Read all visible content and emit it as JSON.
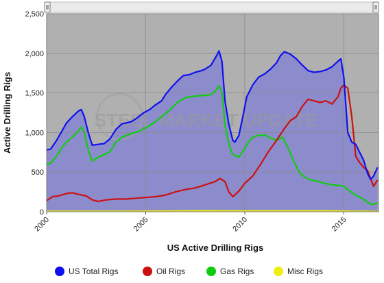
{
  "chart_data": {
    "type": "area",
    "title": "",
    "xlabel": "US Active Drilling Rigs",
    "ylabel": "Active Drilling Rigs",
    "xlim": [
      2000,
      2016.75
    ],
    "ylim": [
      0,
      2500
    ],
    "x_ticks": [
      "2000",
      "2005",
      "2010",
      "2015"
    ],
    "y_ticks": [
      "0",
      "500",
      "1,000",
      "1,500",
      "2,000",
      "2,500"
    ],
    "grid": true,
    "legend_position": "bottom",
    "watermark": "STEEL MARKET UPDATE",
    "plot_background": "#b0b0b0",
    "area_fill": "#8c8ccc",
    "series": [
      {
        "name": "US Total Rigs",
        "color": "#1010ee",
        "x": [
          2000.0,
          2000.2,
          2000.5,
          2000.8,
          2001.0,
          2001.3,
          2001.6,
          2001.75,
          2001.9,
          2002.1,
          2002.3,
          2002.6,
          2002.9,
          2003.2,
          2003.5,
          2003.8,
          2004.0,
          2004.3,
          2004.6,
          2004.9,
          2005.2,
          2005.5,
          2005.8,
          2006.0,
          2006.3,
          2006.6,
          2006.9,
          2007.2,
          2007.5,
          2007.8,
          2008.0,
          2008.3,
          2008.6,
          2008.7,
          2008.85,
          2009.0,
          2009.2,
          2009.4,
          2009.5,
          2009.7,
          2009.9,
          2010.1,
          2010.4,
          2010.7,
          2011.0,
          2011.3,
          2011.6,
          2011.8,
          2012.0,
          2012.3,
          2012.6,
          2012.9,
          2013.2,
          2013.5,
          2013.8,
          2014.1,
          2014.4,
          2014.7,
          2014.85,
          2015.0,
          2015.2,
          2015.4,
          2015.6,
          2015.8,
          2016.0,
          2016.2,
          2016.35,
          2016.5,
          2016.7
        ],
        "values": [
          780,
          790,
          900,
          1030,
          1120,
          1200,
          1270,
          1290,
          1200,
          1000,
          840,
          850,
          860,
          920,
          1040,
          1110,
          1120,
          1140,
          1190,
          1250,
          1290,
          1350,
          1400,
          1480,
          1570,
          1650,
          1720,
          1730,
          1760,
          1780,
          1800,
          1850,
          1980,
          2030,
          1900,
          1400,
          1100,
          900,
          880,
          960,
          1200,
          1450,
          1600,
          1700,
          1740,
          1800,
          1880,
          1970,
          2020,
          1990,
          1930,
          1850,
          1780,
          1760,
          1770,
          1790,
          1830,
          1900,
          1930,
          1700,
          1000,
          880,
          850,
          750,
          650,
          480,
          410,
          450,
          560
        ]
      },
      {
        "name": "Oil Rigs",
        "color": "#cc1010",
        "x": [
          2000.0,
          2000.3,
          2000.6,
          2001.0,
          2001.3,
          2001.6,
          2002.0,
          2002.3,
          2002.6,
          2003.0,
          2003.5,
          2004.0,
          2004.5,
          2005.0,
          2005.5,
          2006.0,
          2006.5,
          2007.0,
          2007.5,
          2008.0,
          2008.5,
          2008.75,
          2009.0,
          2009.2,
          2009.4,
          2009.7,
          2010.0,
          2010.4,
          2010.8,
          2011.2,
          2011.6,
          2012.0,
          2012.3,
          2012.6,
          2012.9,
          2013.2,
          2013.5,
          2013.8,
          2014.1,
          2014.4,
          2014.7,
          2014.85,
          2015.0,
          2015.2,
          2015.4,
          2015.6,
          2015.8,
          2016.0,
          2016.2,
          2016.35,
          2016.5,
          2016.7
        ],
        "values": [
          140,
          190,
          200,
          230,
          240,
          220,
          200,
          150,
          130,
          150,
          160,
          160,
          170,
          180,
          190,
          210,
          250,
          280,
          300,
          340,
          380,
          420,
          380,
          250,
          190,
          260,
          360,
          450,
          600,
          760,
          900,
          1050,
          1150,
          1200,
          1330,
          1420,
          1400,
          1380,
          1400,
          1360,
          1450,
          1560,
          1600,
          1560,
          1200,
          700,
          620,
          560,
          520,
          420,
          320,
          400
        ]
      },
      {
        "name": "Gas Rigs",
        "color": "#10cc10",
        "x": [
          2000.0,
          2000.2,
          2000.5,
          2000.8,
          2001.0,
          2001.3,
          2001.6,
          2001.75,
          2001.9,
          2002.1,
          2002.3,
          2002.6,
          2002.9,
          2003.2,
          2003.5,
          2003.8,
          2004.2,
          2004.6,
          2005.0,
          2005.4,
          2005.8,
          2006.2,
          2006.6,
          2007.0,
          2007.5,
          2008.0,
          2008.3,
          2008.5,
          2008.7,
          2008.85,
          2009.0,
          2009.2,
          2009.4,
          2009.7,
          2010.0,
          2010.3,
          2010.6,
          2011.0,
          2011.3,
          2011.6,
          2011.9,
          2012.2,
          2012.5,
          2012.8,
          2013.2,
          2013.6,
          2014.0,
          2014.4,
          2014.8,
          2015.0,
          2015.3,
          2015.6,
          2015.9,
          2016.2,
          2016.4,
          2016.7
        ],
        "values": [
          600,
          610,
          700,
          820,
          880,
          940,
          1020,
          1070,
          1000,
          780,
          640,
          690,
          720,
          760,
          880,
          940,
          980,
          1010,
          1060,
          1120,
          1200,
          1280,
          1380,
          1440,
          1460,
          1470,
          1480,
          1520,
          1590,
          1500,
          1100,
          850,
          720,
          690,
          800,
          920,
          960,
          970,
          930,
          900,
          940,
          800,
          620,
          480,
          410,
          390,
          360,
          340,
          330,
          320,
          260,
          210,
          170,
          120,
          90,
          110
        ]
      },
      {
        "name": "Misc Rigs",
        "color": "#eeee10",
        "x": [
          2000.0,
          2002.0,
          2004.0,
          2006.0,
          2008.0,
          2009.0,
          2010.0,
          2012.0,
          2014.0,
          2015.0,
          2016.0,
          2016.7
        ],
        "values": [
          5,
          5,
          5,
          8,
          12,
          10,
          10,
          10,
          10,
          8,
          5,
          3
        ]
      }
    ]
  }
}
